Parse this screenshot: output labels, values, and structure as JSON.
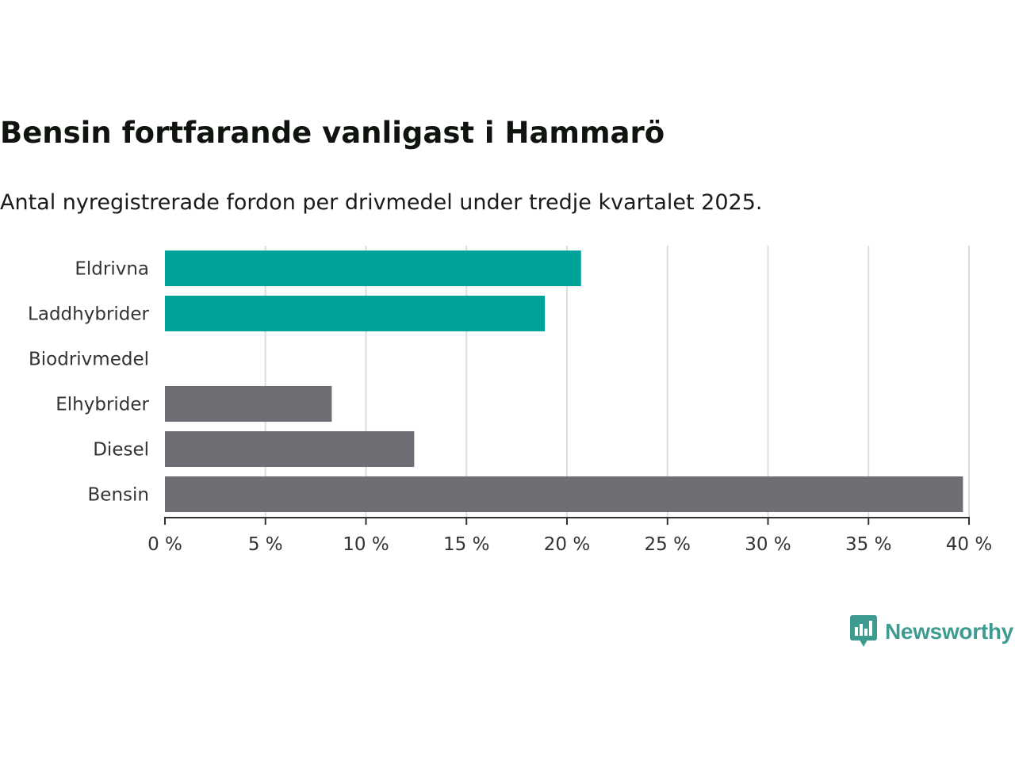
{
  "chart_data": {
    "type": "bar",
    "orientation": "horizontal",
    "title": "Bensin fortfarande vanligast i Hammarö",
    "subtitle": "Antal nyregistrerade fordon per drivmedel under tredje kvartalet 2025.",
    "categories": [
      "Eldrivna",
      "Laddhybrider",
      "Biodrivmedel",
      "Elhybrider",
      "Diesel",
      "Bensin"
    ],
    "values": [
      20.7,
      18.9,
      0,
      8.3,
      12.4,
      39.7
    ],
    "unit": "%",
    "xlim": [
      0,
      40
    ],
    "xticks": [
      0,
      5,
      10,
      15,
      20,
      25,
      30,
      35,
      40
    ],
    "xtick_labels": [
      "0 %",
      "5 %",
      "10 %",
      "15 %",
      "20 %",
      "25 %",
      "30 %",
      "35 %",
      "40 %"
    ],
    "xlabel": "",
    "ylabel": "",
    "grid": "vertical",
    "colors": {
      "Eldrivna": "#00a39a",
      "Laddhybrider": "#00a39a",
      "Biodrivmedel": "#00a39a",
      "Elhybrider": "#6f6e74",
      "Diesel": "#6f6e74",
      "Bensin": "#6f6e74"
    }
  },
  "colors": {
    "gridline": "#dddddd",
    "axis": "#333333",
    "brand": "#3d9b8f"
  },
  "branding": {
    "name": "Newsworthy",
    "logo_icon": "bar-chart-speech-bubble-icon"
  }
}
